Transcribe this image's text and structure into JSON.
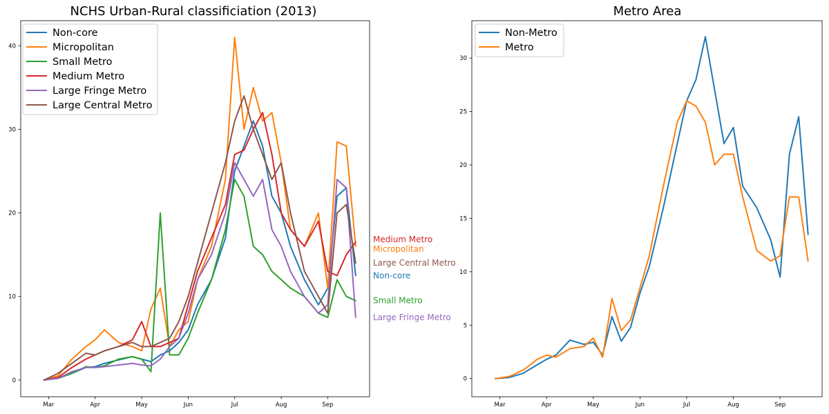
{
  "chart_data": [
    {
      "type": "line",
      "title": "NCHS Urban-Rural classificiation (2013)",
      "xlabel": "",
      "ylabel": "",
      "x_tick_labels": [
        "Mar",
        "Apr",
        "May",
        "Jun",
        "Jul",
        "Aug",
        "Sep"
      ],
      "x_tick_positions": [
        0,
        1,
        2,
        3,
        4,
        5,
        6
      ],
      "x": [
        -0.1,
        0.2,
        0.5,
        0.8,
        1.0,
        1.2,
        1.5,
        1.8,
        2.0,
        2.2,
        2.4,
        2.6,
        2.8,
        3.0,
        3.2,
        3.5,
        3.8,
        4.0,
        4.2,
        4.4,
        4.6,
        4.8,
        5.0,
        5.2,
        5.5,
        5.8,
        6.0,
        6.2,
        6.4,
        6.6
      ],
      "ylim": [
        -2,
        43
      ],
      "y_ticks": [
        0,
        10,
        20,
        30,
        40
      ],
      "grid": false,
      "legend_position": "top-left",
      "series": [
        {
          "name": "Non-core",
          "color": "#1f77b4",
          "end_label": "Non-core",
          "values": [
            0,
            0.2,
            0.8,
            1.5,
            1.6,
            2.0,
            2.4,
            2.8,
            2.5,
            2.2,
            3.0,
            3.5,
            4.5,
            6.0,
            9.0,
            12.0,
            17.0,
            25.0,
            28.0,
            31.0,
            28.0,
            22.0,
            20.0,
            16.0,
            12.0,
            9.0,
            11.0,
            22.0,
            23.0,
            12.5
          ]
        },
        {
          "name": "Micropolitan",
          "color": "#ff7f0e",
          "end_label": "Micropolitan",
          "values": [
            0,
            0.5,
            2.5,
            4.0,
            4.8,
            6.0,
            4.5,
            4.0,
            3.5,
            8.5,
            11.0,
            4.0,
            6.0,
            7.0,
            12.0,
            16.0,
            24.0,
            41.0,
            30.0,
            35.0,
            31.0,
            32.0,
            26.0,
            18.0,
            16.0,
            20.0,
            11.0,
            28.5,
            28.0,
            16.0
          ]
        },
        {
          "name": "Small Metro",
          "color": "#2ca02c",
          "end_label": "Small Metro",
          "values": [
            0,
            0.2,
            0.8,
            1.6,
            1.5,
            1.7,
            2.5,
            2.8,
            2.5,
            1.0,
            20.0,
            3.0,
            3.0,
            5.0,
            8.0,
            12.0,
            18.0,
            24.0,
            22.0,
            16.0,
            15.0,
            13.0,
            12.0,
            11.0,
            10.0,
            8.0,
            7.5,
            12.0,
            10.0,
            9.5
          ]
        },
        {
          "name": "Medium Metro",
          "color": "#d62728",
          "end_label": "Medium Metro",
          "values": [
            0,
            0.3,
            1.5,
            2.5,
            3.0,
            3.5,
            4.0,
            4.8,
            7.0,
            4.0,
            4.0,
            4.5,
            5.0,
            9.0,
            13.0,
            17.0,
            21.0,
            27.0,
            27.5,
            30.0,
            32.0,
            27.0,
            20.0,
            18.0,
            16.0,
            19.0,
            13.0,
            12.5,
            15.0,
            16.5
          ]
        },
        {
          "name": "Large Fringe Metro",
          "color": "#9467bd",
          "end_label": "Large Fringe Metro",
          "values": [
            0,
            0.2,
            1.0,
            1.5,
            1.5,
            1.6,
            1.8,
            2.0,
            1.8,
            1.7,
            2.5,
            4.0,
            5.0,
            8.0,
            12.0,
            15.0,
            20.0,
            26.0,
            24.0,
            22.0,
            24.0,
            18.0,
            16.0,
            13.0,
            10.0,
            8.0,
            9.0,
            24.0,
            23.0,
            7.5
          ]
        },
        {
          "name": "Large Central Metro",
          "color": "#8c564b",
          "end_label": "Large Central Metro",
          "values": [
            0,
            0.8,
            2.0,
            3.2,
            3.0,
            3.5,
            4.0,
            4.5,
            4.0,
            4.0,
            4.5,
            5.0,
            7.0,
            10.0,
            14.0,
            20.0,
            26.0,
            31.0,
            34.0,
            30.0,
            27.0,
            24.0,
            26.0,
            20.0,
            13.0,
            10.0,
            8.0,
            20.0,
            21.0,
            14.0
          ]
        }
      ]
    },
    {
      "type": "line",
      "title": "Metro Area",
      "xlabel": "",
      "ylabel": "",
      "x_tick_labels": [
        "Mar",
        "Apr",
        "May",
        "Jun",
        "Jul",
        "Aug",
        "Sep"
      ],
      "x_tick_positions": [
        0,
        1,
        2,
        3,
        4,
        5,
        6
      ],
      "x": [
        -0.1,
        0.2,
        0.5,
        0.8,
        1.0,
        1.2,
        1.5,
        1.8,
        2.0,
        2.2,
        2.4,
        2.6,
        2.8,
        3.0,
        3.2,
        3.5,
        3.8,
        4.0,
        4.2,
        4.4,
        4.6,
        4.8,
        5.0,
        5.2,
        5.5,
        5.8,
        6.0,
        6.2,
        6.4,
        6.6
      ],
      "ylim": [
        -1.7,
        33.5
      ],
      "y_ticks": [
        0,
        5,
        10,
        15,
        20,
        25,
        30
      ],
      "grid": false,
      "legend_position": "top-left",
      "series": [
        {
          "name": "Non-Metro",
          "color": "#1f77b4",
          "values": [
            0,
            0.1,
            0.5,
            1.3,
            1.8,
            2.2,
            3.6,
            3.2,
            3.4,
            2.2,
            5.8,
            3.5,
            4.8,
            8.0,
            10.5,
            16.0,
            22.0,
            26.0,
            28.0,
            32.0,
            27.0,
            22.0,
            23.5,
            18.0,
            16.0,
            13.0,
            9.5,
            21.0,
            24.5,
            13.5
          ]
        },
        {
          "name": "Metro",
          "color": "#ff7f0e",
          "values": [
            0,
            0.2,
            0.8,
            1.8,
            2.2,
            2.0,
            2.8,
            3.0,
            3.8,
            2.0,
            7.5,
            4.5,
            5.5,
            8.5,
            11.5,
            18.0,
            24.0,
            26.0,
            25.5,
            24.0,
            20.0,
            21.0,
            21.0,
            17.0,
            12.0,
            11.0,
            11.5,
            17.0,
            17.0,
            11.0
          ]
        }
      ]
    }
  ]
}
